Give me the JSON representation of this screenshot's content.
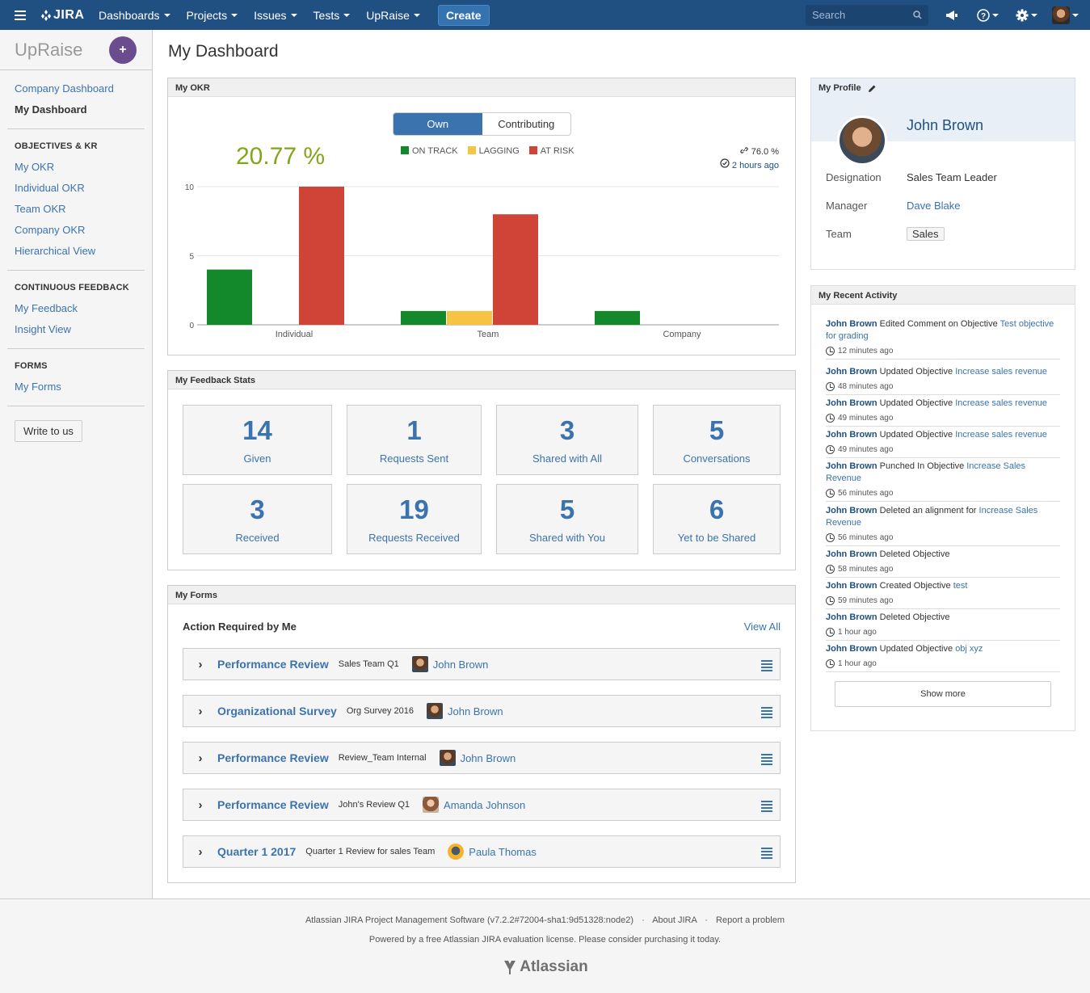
{
  "nav": {
    "logo": "JIRA",
    "items": [
      "Dashboards",
      "Projects",
      "Issues",
      "Tests",
      "UpRaise"
    ],
    "create": "Create",
    "search_placeholder": "Search"
  },
  "sidebar": {
    "brand": "UpRaise",
    "plus": "+",
    "top_links": [
      {
        "label": "Company Dashboard",
        "active": false
      },
      {
        "label": "My Dashboard",
        "active": true
      }
    ],
    "objectives_heading": "OBJECTIVES & KR",
    "objectives": [
      "My OKR",
      "Individual OKR",
      "Team OKR",
      "Company OKR",
      "Hierarchical View"
    ],
    "feedback_heading": "CONTINUOUS FEEDBACK",
    "feedback": [
      "My Feedback",
      "Insight View"
    ],
    "forms_heading": "FORMS",
    "forms": [
      "My Forms"
    ],
    "write_button": "Write to us"
  },
  "page": {
    "title": "My Dashboard"
  },
  "okr": {
    "panel_title": "My OKR",
    "toggle": [
      "Own",
      "Contributing"
    ],
    "percentage": "20.77 %",
    "confidence": "76.0 %",
    "updated": "2 hours ago"
  },
  "chart_data": {
    "type": "bar",
    "categories": [
      "Individual",
      "Team",
      "Company"
    ],
    "series": [
      {
        "name": "ON TRACK",
        "color": "#14892c",
        "values": [
          4,
          1,
          1
        ]
      },
      {
        "name": "LAGGING",
        "color": "#f6c342",
        "values": [
          0,
          1,
          0
        ]
      },
      {
        "name": "AT RISK",
        "color": "#d04437",
        "values": [
          10,
          8,
          0
        ]
      }
    ],
    "yticks": [
      0,
      5,
      10
    ],
    "ylim": [
      0,
      10
    ]
  },
  "feedback_stats": {
    "panel_title": "My Feedback Stats",
    "cards": [
      {
        "num": "14",
        "label": "Given"
      },
      {
        "num": "1",
        "label": "Requests Sent"
      },
      {
        "num": "3",
        "label": "Shared with All"
      },
      {
        "num": "5",
        "label": "Conversations"
      },
      {
        "num": "3",
        "label": "Received"
      },
      {
        "num": "19",
        "label": "Requests Received"
      },
      {
        "num": "5",
        "label": "Shared with You"
      },
      {
        "num": "6",
        "label": "Yet to be Shared"
      }
    ]
  },
  "forms": {
    "panel_title": "My Forms",
    "subheading": "Action Required by Me",
    "view_all": "View All",
    "rows": [
      {
        "title": "Performance Review",
        "sub": "Sales Team Q1",
        "user": "John Brown",
        "avatar": "male"
      },
      {
        "title": "Organizational Survey",
        "sub": "Org Survey 2016",
        "user": "John Brown",
        "avatar": "male"
      },
      {
        "title": "Performance Review",
        "sub": "Review_Team Internal",
        "user": "John Brown",
        "avatar": "male"
      },
      {
        "title": "Performance Review",
        "sub": "John's Review Q1",
        "user": "Amanda Johnson",
        "avatar": "female"
      },
      {
        "title": "Quarter 1 2017",
        "sub": "Quarter 1 Review for sales Team",
        "user": "Paula Thomas",
        "avatar": "default"
      }
    ]
  },
  "profile": {
    "panel_title": "My Profile",
    "name": "John Brown",
    "designation_label": "Designation",
    "designation": "Sales Team Leader",
    "manager_label": "Manager",
    "manager": "Dave Blake",
    "team_label": "Team",
    "team": "Sales"
  },
  "activity": {
    "panel_title": "My Recent Activity",
    "items": [
      {
        "user": "John Brown",
        "action": " Edited Comment on Objective ",
        "target": "Test objective for grading",
        "time": "12 minutes ago"
      },
      {
        "user": "John Brown",
        "action": " Updated Objective ",
        "target": "Increase sales revenue",
        "time": "48 minutes ago"
      },
      {
        "user": "John Brown",
        "action": " Updated Objective ",
        "target": "Increase sales revenue",
        "time": "49 minutes ago"
      },
      {
        "user": "John Brown",
        "action": " Updated Objective ",
        "target": "Increase sales revenue",
        "time": "49 minutes ago"
      },
      {
        "user": "John Brown",
        "action": " Punched In Objective ",
        "target": "Increase Sales Revenue",
        "time": "56 minutes ago"
      },
      {
        "user": "John Brown",
        "action": " Deleted an alignment for ",
        "target": "Increase Sales Revenue",
        "time": "56 minutes ago"
      },
      {
        "user": "John Brown",
        "action": " Deleted Objective",
        "target": "",
        "time": "58 minutes ago"
      },
      {
        "user": "John Brown",
        "action": " Created Objective ",
        "target": "test",
        "time": "59 minutes ago"
      },
      {
        "user": "John Brown",
        "action": " Deleted Objective",
        "target": "",
        "time": "1 hour ago"
      },
      {
        "user": "John Brown",
        "action": " Updated Objective ",
        "target": "obj xyz",
        "time": "1 hour ago"
      }
    ],
    "show_more": "Show more"
  },
  "footer": {
    "software": "Atlassian JIRA Project Management Software (v7.2.2#72004-sha1:9d51328:node2)",
    "about": "About JIRA",
    "report": "Report a problem",
    "license": "Powered by a free Atlassian JIRA evaluation license. Please consider purchasing it today.",
    "brand": "Atlassian"
  }
}
